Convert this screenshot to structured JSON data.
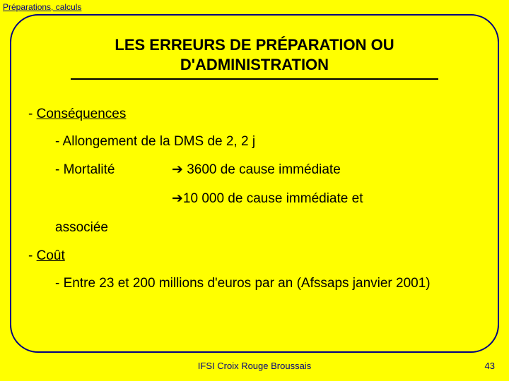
{
  "header_label": "Préparations, calculs",
  "title_line1": "LES ERREURS DE PRÉPARATION OU",
  "title_line2": "D'ADMINISTRATION",
  "section_consequences": "Conséquences",
  "bullet_allongement": "- Allongement de la DMS de 2, 2 j",
  "bullet_mortalite_label": "- Mortalité",
  "mortalite_arrow1": "➔ 3600 de cause immédiate",
  "mortalite_arrow2": "➔10 000 de cause immédiate et",
  "mortalite_associee": "associée",
  "section_cout": "Coût",
  "bullet_cout": "- Entre 23 et 200 millions d'euros par an (Afssaps janvier 2001)",
  "footer_center": "IFSI Croix Rouge Broussais",
  "footer_page": "43",
  "colors": {
    "background": "#ffff00",
    "frame_border": "#000080",
    "text": "#000000",
    "footer_text": "#000080"
  }
}
